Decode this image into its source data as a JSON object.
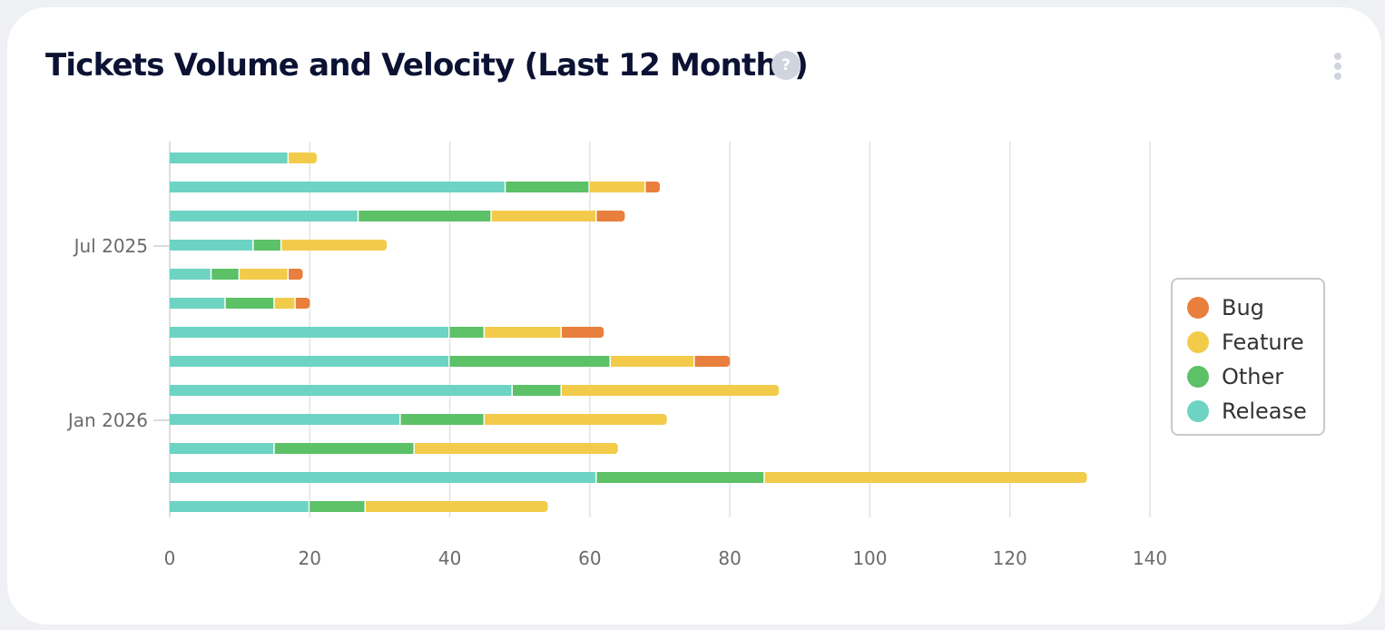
{
  "header": {
    "title": "Tickets Volume and Velocity (Last 12 Months)",
    "help_glyph": "?",
    "help_icon": "question-circle-icon",
    "menu_icon": "kebab-menu-icon"
  },
  "chart_data": {
    "type": "bar",
    "orientation": "horizontal",
    "stacked": true,
    "title": "Tickets Volume and Velocity (Last 12 Months)",
    "categories": [
      "",
      "",
      "",
      "Jul 2025",
      "",
      "",
      "",
      "",
      "",
      "Jan 2026",
      "",
      "",
      ""
    ],
    "series": [
      {
        "name": "Release",
        "color": "#6dd3c3",
        "values": [
          17,
          48,
          27,
          12,
          6,
          8,
          40,
          40,
          49,
          33,
          15,
          61,
          20
        ]
      },
      {
        "name": "Other",
        "color": "#5cc167",
        "values": [
          0,
          12,
          19,
          4,
          4,
          7,
          5,
          23,
          7,
          12,
          20,
          24,
          8
        ]
      },
      {
        "name": "Feature",
        "color": "#f2cb4b",
        "values": [
          4,
          8,
          15,
          15,
          7,
          3,
          11,
          12,
          31,
          26,
          29,
          46,
          26
        ]
      },
      {
        "name": "Bug",
        "color": "#e97f3c",
        "values": [
          0,
          2,
          4,
          0,
          2,
          2,
          6,
          5,
          0,
          0,
          0,
          0,
          0
        ]
      }
    ],
    "xlim": [
      0,
      140
    ],
    "xticks": [
      0,
      20,
      40,
      60,
      80,
      100,
      120,
      140
    ],
    "xlabel": "",
    "ylabel": "",
    "grid": true,
    "legend_position": "right"
  },
  "legend": {
    "items": [
      {
        "label": "Bug",
        "color": "#e97f3c"
      },
      {
        "label": "Feature",
        "color": "#f2cb4b"
      },
      {
        "label": "Other",
        "color": "#5cc167"
      },
      {
        "label": "Release",
        "color": "#6dd3c3"
      }
    ]
  }
}
